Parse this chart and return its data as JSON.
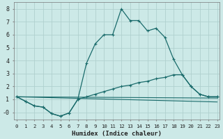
{
  "xlabel": "Humidex (Indice chaleur)",
  "background_color": "#cce9e7",
  "grid_color": "#b0d0ce",
  "line_color": "#1a6b6b",
  "series": [
    {
      "x": [
        0,
        1,
        2,
        3,
        4,
        5,
        6,
        7,
        8,
        9,
        10,
        11,
        12,
        13,
        14,
        15,
        16,
        17,
        18,
        19,
        20,
        21,
        22,
        23
      ],
      "y": [
        1.2,
        0.85,
        0.5,
        0.4,
        -0.1,
        -0.3,
        -0.05,
        1.0,
        3.8,
        5.3,
        6.0,
        6.0,
        8.0,
        7.1,
        7.1,
        6.3,
        6.5,
        5.8,
        4.1,
        2.9,
        2.0,
        1.4,
        1.2,
        1.2
      ]
    },
    {
      "x": [
        0,
        1,
        2,
        3,
        4,
        5,
        6,
        7,
        8,
        9,
        10,
        11,
        12,
        13,
        14,
        15,
        16,
        17,
        18,
        19,
        20,
        21,
        22,
        23
      ],
      "y": [
        1.2,
        0.85,
        0.5,
        0.4,
        -0.1,
        -0.3,
        -0.05,
        1.0,
        1.2,
        1.4,
        1.6,
        1.8,
        2.0,
        2.1,
        2.3,
        2.4,
        2.6,
        2.7,
        2.9,
        2.9,
        2.0,
        1.4,
        1.2,
        1.2
      ]
    },
    {
      "x": [
        0,
        23
      ],
      "y": [
        1.2,
        1.1
      ]
    },
    {
      "x": [
        0,
        23
      ],
      "y": [
        1.2,
        0.8
      ]
    }
  ],
  "xlim": [
    -0.3,
    23.3
  ],
  "ylim": [
    -0.55,
    8.5
  ],
  "yticks": [
    0,
    1,
    2,
    3,
    4,
    5,
    6,
    7,
    8
  ],
  "ytick_labels": [
    "-0",
    "1",
    "2",
    "3",
    "4",
    "5",
    "6",
    "7",
    "8"
  ],
  "xticks": [
    0,
    1,
    2,
    3,
    4,
    5,
    6,
    7,
    8,
    9,
    10,
    11,
    12,
    13,
    14,
    15,
    16,
    17,
    18,
    19,
    20,
    21,
    22,
    23
  ],
  "figsize": [
    3.2,
    2.0
  ],
  "dpi": 100
}
